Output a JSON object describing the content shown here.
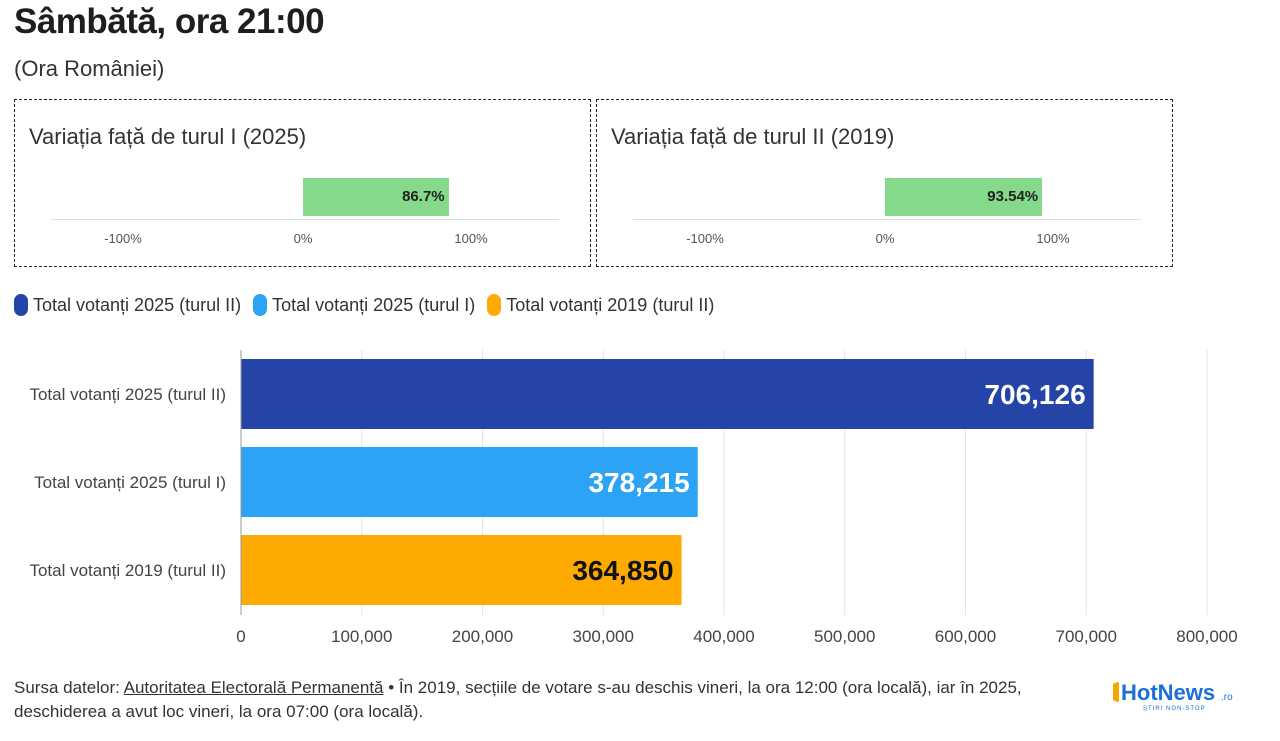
{
  "header": {
    "title": "Sâmbătă, ora 21:00",
    "subtitle": "(Ora României)"
  },
  "variation_boxes": [
    {
      "title": "Variația față de turul I (2025)",
      "value": 86.7,
      "value_label": "86.7%",
      "ticks": [
        "-100%",
        "0%",
        "100%"
      ],
      "color": "#84d98a"
    },
    {
      "title": "Variația față de turul II (2019)",
      "value": 93.54,
      "value_label": "93.54%",
      "ticks": [
        "-100%",
        "0%",
        "100%"
      ],
      "color": "#84d98a"
    }
  ],
  "legend": [
    {
      "label": "Total votanți 2025 (turul II)",
      "color": "#2444a8"
    },
    {
      "label": "Total votanți 2025 (turul I)",
      "color": "#2da3f5"
    },
    {
      "label": "Total votanți 2019 (turul II)",
      "color": "#ffaa00"
    }
  ],
  "chart_data": {
    "type": "bar",
    "orientation": "horizontal",
    "categories": [
      "Total votanți 2025 (turul II)",
      "Total votanți 2025 (turul I)",
      "Total votanți 2019 (turul II)"
    ],
    "values": [
      706126,
      378215,
      364850
    ],
    "value_labels": [
      "706,126",
      "378,215",
      "364,850"
    ],
    "colors": [
      "#2444a8",
      "#2da3f5",
      "#ffaa00"
    ],
    "label_colors": [
      "#ffffff",
      "#ffffff",
      "#111111"
    ],
    "xlim": [
      0,
      800000
    ],
    "xticks": [
      0,
      100000,
      200000,
      300000,
      400000,
      500000,
      600000,
      700000,
      800000
    ],
    "xtick_labels": [
      "0",
      "100,000",
      "200,000",
      "300,000",
      "400,000",
      "500,000",
      "600,000",
      "700,000",
      "800,000"
    ],
    "grid": true,
    "legend_position": "top-left"
  },
  "footer": {
    "source_prefix": "Sursa datelor: ",
    "source_link": "Autoritatea Electorală Permanentă",
    "source_text": " • În 2019, secțiile de votare s-au deschis vineri, la ora 12:00 (ora locală), iar în 2025, deschiderea a avut loc vineri, la ora 07:00 (ora locală).",
    "logo_text": "HotNews",
    "logo_suffix": ".ro",
    "logo_tagline": "ȘTIRI NON-STOP"
  }
}
